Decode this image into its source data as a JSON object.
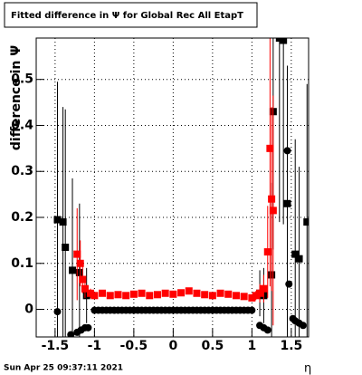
{
  "chart_data": {
    "type": "scatter",
    "title": "Fitted difference in  Ψ  for Global Rec All EtapT",
    "y_label": "difference in  Ψ",
    "x_label": "η",
    "footer": "Sun Apr 25 09:37:11 2021",
    "xlim": [
      -1.74,
      1.72
    ],
    "ylim": [
      -0.06,
      0.59
    ],
    "xticks": [
      -1.5,
      -1,
      -0.5,
      0,
      0.5,
      1,
      1.5
    ],
    "yticks": [
      0,
      0.1,
      0.2,
      0.3,
      0.4,
      0.5
    ],
    "grid": true,
    "series": [
      {
        "color": "#000000",
        "marker": "square",
        "x": [
          -1.47,
          -1.4,
          -1.37,
          -1.28,
          -1.19,
          -1.1,
          1.1,
          1.15,
          1.25,
          1.27,
          1.35,
          1.4,
          1.45,
          1.55,
          1.6,
          1.7
        ],
        "values": [
          0.195,
          0.19,
          0.135,
          0.085,
          0.08,
          0.03,
          0.035,
          0.03,
          0.075,
          0.43,
          0.59,
          0.585,
          0.23,
          0.12,
          0.11,
          0.19
        ],
        "errors": [
          0.3,
          0.25,
          0.3,
          0.2,
          0.15,
          0.06,
          0.05,
          0.06,
          0.2,
          0.3,
          0.4,
          0.4,
          0.3,
          0.25,
          0.2,
          0.3
        ]
      },
      {
        "color": "#ff0000",
        "marker": "square",
        "x": [
          -1.22,
          -1.18,
          -1.15,
          -1.12,
          -1.05,
          -1.0,
          -0.9,
          -0.8,
          -0.7,
          -0.6,
          -0.5,
          -0.4,
          -0.3,
          -0.2,
          -0.1,
          0,
          0.1,
          0.2,
          0.3,
          0.4,
          0.5,
          0.6,
          0.7,
          0.8,
          0.9,
          1.0,
          1.05,
          1.1,
          1.15,
          1.2,
          1.23,
          1.25,
          1.27
        ],
        "values": [
          0.12,
          0.1,
          0.065,
          0.045,
          0.035,
          0.03,
          0.035,
          0.03,
          0.032,
          0.03,
          0.033,
          0.035,
          0.03,
          0.032,
          0.035,
          0.033,
          0.036,
          0.04,
          0.035,
          0.032,
          0.03,
          0.035,
          0.033,
          0.03,
          0.028,
          0.025,
          0.03,
          0.035,
          0.045,
          0.125,
          0.35,
          0.24,
          0.215
        ],
        "errors": [
          0.1,
          0.05,
          0.03,
          0.02,
          0.01,
          0.004,
          0.004,
          0.004,
          0.004,
          0.004,
          0.004,
          0.004,
          0.004,
          0.004,
          0.004,
          0.004,
          0.004,
          0.004,
          0.004,
          0.004,
          0.004,
          0.004,
          0.004,
          0.004,
          0.004,
          0.004,
          0.01,
          0.02,
          0.03,
          0.1,
          0.3,
          0.2,
          0.25
        ]
      },
      {
        "color": "#000000",
        "marker": "circle",
        "x": [
          -1.47,
          -1.3,
          -1.22,
          -1.17,
          -1.12,
          -1.08,
          -1.0,
          -0.95,
          -0.9,
          -0.85,
          -0.8,
          -0.75,
          -0.7,
          -0.65,
          -0.6,
          -0.55,
          -0.5,
          -0.45,
          -0.4,
          -0.35,
          -0.3,
          -0.25,
          -0.2,
          -0.15,
          -0.1,
          -0.05,
          0,
          0.05,
          0.1,
          0.15,
          0.2,
          0.25,
          0.3,
          0.35,
          0.4,
          0.45,
          0.5,
          0.55,
          0.6,
          0.65,
          0.7,
          0.75,
          0.8,
          0.85,
          0.9,
          0.95,
          1.0,
          1.1,
          1.15,
          1.2,
          1.45,
          1.47,
          1.52,
          1.55,
          1.6,
          1.65
        ],
        "values": [
          -0.005,
          -0.055,
          -0.05,
          -0.045,
          -0.04,
          -0.04,
          -0.002,
          -0.002,
          -0.002,
          -0.002,
          -0.002,
          -0.002,
          -0.002,
          -0.002,
          -0.002,
          -0.002,
          -0.002,
          -0.002,
          -0.002,
          -0.002,
          -0.002,
          -0.002,
          -0.002,
          -0.002,
          -0.002,
          -0.002,
          -0.002,
          -0.002,
          -0.002,
          -0.002,
          -0.002,
          -0.002,
          -0.002,
          -0.002,
          -0.002,
          -0.002,
          -0.002,
          -0.002,
          -0.002,
          -0.002,
          -0.002,
          -0.002,
          -0.002,
          -0.002,
          -0.002,
          -0.002,
          -0.002,
          -0.035,
          -0.04,
          -0.045,
          0.345,
          0.055,
          -0.02,
          -0.025,
          -0.03,
          -0.035
        ]
      }
    ]
  }
}
